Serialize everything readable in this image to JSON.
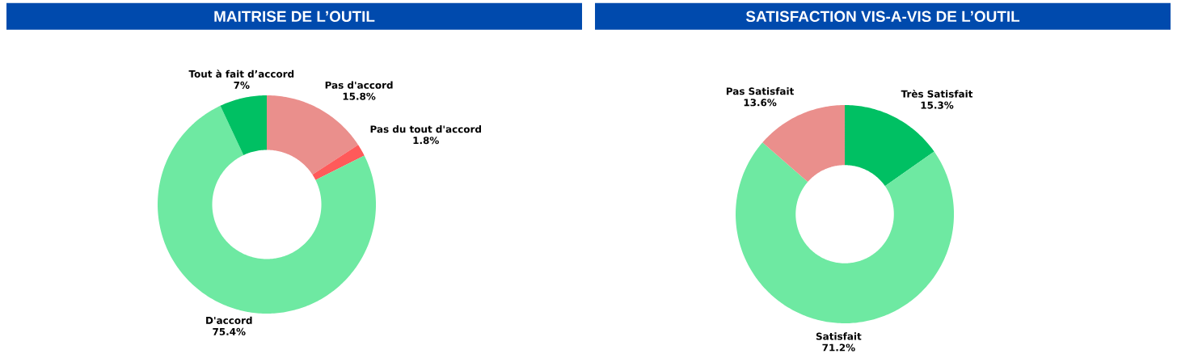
{
  "chart_data": [
    {
      "type": "donut",
      "title": "MAITRISE DE L’OUTIL",
      "categories": [
        "Pas d'accord",
        "Pas du tout d'accord",
        "D'accord",
        "Tout à fait d’accord"
      ],
      "values": [
        15.8,
        1.8,
        75.4,
        7
      ],
      "value_labels": [
        "15.8%",
        "1.8%",
        "75.4%",
        "7%"
      ],
      "colors": [
        "#ea8f8c",
        "#ff5a5a",
        "#6ee9a2",
        "#00c063"
      ]
    },
    {
      "type": "donut",
      "title": "SATISFACTION VIS-A-VIS DE L’OUTIL",
      "categories": [
        "Très Satisfait",
        "Satisfait",
        "Pas Satisfait"
      ],
      "values": [
        15.3,
        71.2,
        13.6
      ],
      "value_labels": [
        "15.3%",
        "71.2%",
        "13.6%"
      ],
      "colors": [
        "#00c063",
        "#6ee9a2",
        "#ea8f8c"
      ]
    }
  ]
}
